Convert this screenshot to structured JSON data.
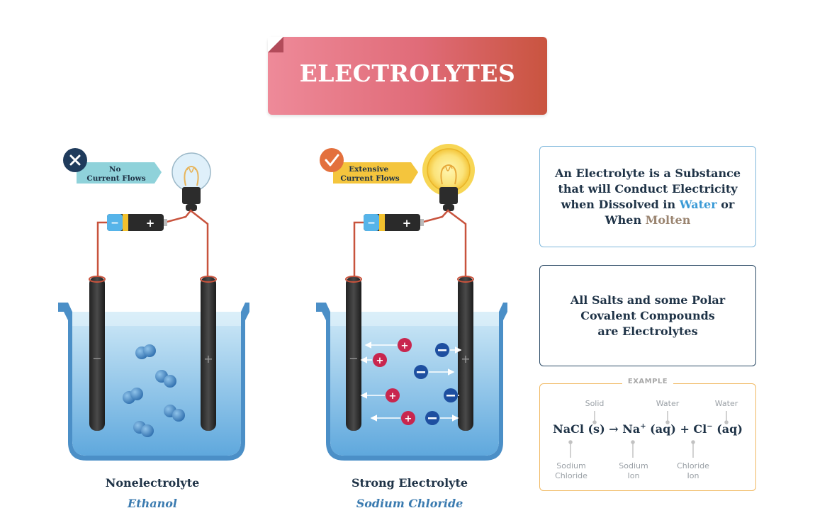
{
  "title": "ELECTROLYTES",
  "left_panel": {
    "status": "No\nCurrent Flows",
    "label": "Nonelectrolyte",
    "example": "Ethanol",
    "minus_sign": "−",
    "plus_sign": "+"
  },
  "right_panel": {
    "status": "Extensive\nCurrent Flows",
    "label": "Strong Electrolyte",
    "example": "Sodium Chloride",
    "minus_sign": "−",
    "plus_sign": "+"
  },
  "battery": {
    "neg": "−",
    "pos": "+"
  },
  "definition": {
    "part1": "An Electrolyte is a Substance that will Conduct Electricity when Dissolved in ",
    "water": "Water",
    "part2": " or When ",
    "molten": "Molten"
  },
  "salts_note": "All Salts and some Polar Covalent Compounds are Electrolytes",
  "example": {
    "heading": "EXAMPLE",
    "state_labels": [
      "Solid",
      "Water",
      "Water"
    ],
    "equation": {
      "reactant": "NaCl (s)",
      "arrow": "→",
      "product1": "Na",
      "product1_charge": "+",
      "product1_state": " (aq) ",
      "plus": "+",
      "product2": " Cl",
      "product2_charge": "−",
      "product2_state": " (aq)"
    },
    "name_labels": [
      "Sodium\nChloride",
      "Sodium\nIon",
      "Chloride\nIon"
    ]
  },
  "colors": {
    "water_light": "#b9e1f5",
    "water_dark": "#5fa8dd",
    "banner_start": "#ee8a99",
    "banner_end": "#c9543f",
    "cation": "#c8264e",
    "anion": "#1e4fa0",
    "molecule": "#3d82c0",
    "wire": "#c8533d"
  }
}
